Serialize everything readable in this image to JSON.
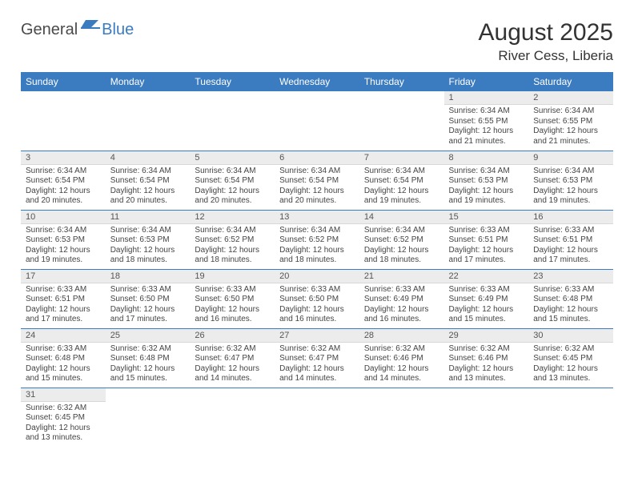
{
  "brand": {
    "part1": "General",
    "part2": "Blue"
  },
  "title": "August 2025",
  "location": "River Cess, Liberia",
  "colors": {
    "header_bg": "#3b7bbf",
    "header_fg": "#ffffff",
    "daynum_bg": "#ececec",
    "row_border": "#3b7bbf",
    "text": "#333333"
  },
  "typography": {
    "title_fontsize": 30,
    "location_fontsize": 17,
    "dayheader_fontsize": 12,
    "daynum_fontsize": 11,
    "body_fontsize": 10
  },
  "day_headers": [
    "Sunday",
    "Monday",
    "Tuesday",
    "Wednesday",
    "Thursday",
    "Friday",
    "Saturday"
  ],
  "weeks": [
    [
      {
        "n": "",
        "sunrise": "",
        "sunset": "",
        "daylight": ""
      },
      {
        "n": "",
        "sunrise": "",
        "sunset": "",
        "daylight": ""
      },
      {
        "n": "",
        "sunrise": "",
        "sunset": "",
        "daylight": ""
      },
      {
        "n": "",
        "sunrise": "",
        "sunset": "",
        "daylight": ""
      },
      {
        "n": "",
        "sunrise": "",
        "sunset": "",
        "daylight": ""
      },
      {
        "n": "1",
        "sunrise": "Sunrise: 6:34 AM",
        "sunset": "Sunset: 6:55 PM",
        "daylight": "Daylight: 12 hours and 21 minutes."
      },
      {
        "n": "2",
        "sunrise": "Sunrise: 6:34 AM",
        "sunset": "Sunset: 6:55 PM",
        "daylight": "Daylight: 12 hours and 21 minutes."
      }
    ],
    [
      {
        "n": "3",
        "sunrise": "Sunrise: 6:34 AM",
        "sunset": "Sunset: 6:54 PM",
        "daylight": "Daylight: 12 hours and 20 minutes."
      },
      {
        "n": "4",
        "sunrise": "Sunrise: 6:34 AM",
        "sunset": "Sunset: 6:54 PM",
        "daylight": "Daylight: 12 hours and 20 minutes."
      },
      {
        "n": "5",
        "sunrise": "Sunrise: 6:34 AM",
        "sunset": "Sunset: 6:54 PM",
        "daylight": "Daylight: 12 hours and 20 minutes."
      },
      {
        "n": "6",
        "sunrise": "Sunrise: 6:34 AM",
        "sunset": "Sunset: 6:54 PM",
        "daylight": "Daylight: 12 hours and 20 minutes."
      },
      {
        "n": "7",
        "sunrise": "Sunrise: 6:34 AM",
        "sunset": "Sunset: 6:54 PM",
        "daylight": "Daylight: 12 hours and 19 minutes."
      },
      {
        "n": "8",
        "sunrise": "Sunrise: 6:34 AM",
        "sunset": "Sunset: 6:53 PM",
        "daylight": "Daylight: 12 hours and 19 minutes."
      },
      {
        "n": "9",
        "sunrise": "Sunrise: 6:34 AM",
        "sunset": "Sunset: 6:53 PM",
        "daylight": "Daylight: 12 hours and 19 minutes."
      }
    ],
    [
      {
        "n": "10",
        "sunrise": "Sunrise: 6:34 AM",
        "sunset": "Sunset: 6:53 PM",
        "daylight": "Daylight: 12 hours and 19 minutes."
      },
      {
        "n": "11",
        "sunrise": "Sunrise: 6:34 AM",
        "sunset": "Sunset: 6:53 PM",
        "daylight": "Daylight: 12 hours and 18 minutes."
      },
      {
        "n": "12",
        "sunrise": "Sunrise: 6:34 AM",
        "sunset": "Sunset: 6:52 PM",
        "daylight": "Daylight: 12 hours and 18 minutes."
      },
      {
        "n": "13",
        "sunrise": "Sunrise: 6:34 AM",
        "sunset": "Sunset: 6:52 PM",
        "daylight": "Daylight: 12 hours and 18 minutes."
      },
      {
        "n": "14",
        "sunrise": "Sunrise: 6:34 AM",
        "sunset": "Sunset: 6:52 PM",
        "daylight": "Daylight: 12 hours and 18 minutes."
      },
      {
        "n": "15",
        "sunrise": "Sunrise: 6:33 AM",
        "sunset": "Sunset: 6:51 PM",
        "daylight": "Daylight: 12 hours and 17 minutes."
      },
      {
        "n": "16",
        "sunrise": "Sunrise: 6:33 AM",
        "sunset": "Sunset: 6:51 PM",
        "daylight": "Daylight: 12 hours and 17 minutes."
      }
    ],
    [
      {
        "n": "17",
        "sunrise": "Sunrise: 6:33 AM",
        "sunset": "Sunset: 6:51 PM",
        "daylight": "Daylight: 12 hours and 17 minutes."
      },
      {
        "n": "18",
        "sunrise": "Sunrise: 6:33 AM",
        "sunset": "Sunset: 6:50 PM",
        "daylight": "Daylight: 12 hours and 17 minutes."
      },
      {
        "n": "19",
        "sunrise": "Sunrise: 6:33 AM",
        "sunset": "Sunset: 6:50 PM",
        "daylight": "Daylight: 12 hours and 16 minutes."
      },
      {
        "n": "20",
        "sunrise": "Sunrise: 6:33 AM",
        "sunset": "Sunset: 6:50 PM",
        "daylight": "Daylight: 12 hours and 16 minutes."
      },
      {
        "n": "21",
        "sunrise": "Sunrise: 6:33 AM",
        "sunset": "Sunset: 6:49 PM",
        "daylight": "Daylight: 12 hours and 16 minutes."
      },
      {
        "n": "22",
        "sunrise": "Sunrise: 6:33 AM",
        "sunset": "Sunset: 6:49 PM",
        "daylight": "Daylight: 12 hours and 15 minutes."
      },
      {
        "n": "23",
        "sunrise": "Sunrise: 6:33 AM",
        "sunset": "Sunset: 6:48 PM",
        "daylight": "Daylight: 12 hours and 15 minutes."
      }
    ],
    [
      {
        "n": "24",
        "sunrise": "Sunrise: 6:33 AM",
        "sunset": "Sunset: 6:48 PM",
        "daylight": "Daylight: 12 hours and 15 minutes."
      },
      {
        "n": "25",
        "sunrise": "Sunrise: 6:32 AM",
        "sunset": "Sunset: 6:48 PM",
        "daylight": "Daylight: 12 hours and 15 minutes."
      },
      {
        "n": "26",
        "sunrise": "Sunrise: 6:32 AM",
        "sunset": "Sunset: 6:47 PM",
        "daylight": "Daylight: 12 hours and 14 minutes."
      },
      {
        "n": "27",
        "sunrise": "Sunrise: 6:32 AM",
        "sunset": "Sunset: 6:47 PM",
        "daylight": "Daylight: 12 hours and 14 minutes."
      },
      {
        "n": "28",
        "sunrise": "Sunrise: 6:32 AM",
        "sunset": "Sunset: 6:46 PM",
        "daylight": "Daylight: 12 hours and 14 minutes."
      },
      {
        "n": "29",
        "sunrise": "Sunrise: 6:32 AM",
        "sunset": "Sunset: 6:46 PM",
        "daylight": "Daylight: 12 hours and 13 minutes."
      },
      {
        "n": "30",
        "sunrise": "Sunrise: 6:32 AM",
        "sunset": "Sunset: 6:45 PM",
        "daylight": "Daylight: 12 hours and 13 minutes."
      }
    ],
    [
      {
        "n": "31",
        "sunrise": "Sunrise: 6:32 AM",
        "sunset": "Sunset: 6:45 PM",
        "daylight": "Daylight: 12 hours and 13 minutes."
      },
      {
        "n": "",
        "sunrise": "",
        "sunset": "",
        "daylight": ""
      },
      {
        "n": "",
        "sunrise": "",
        "sunset": "",
        "daylight": ""
      },
      {
        "n": "",
        "sunrise": "",
        "sunset": "",
        "daylight": ""
      },
      {
        "n": "",
        "sunrise": "",
        "sunset": "",
        "daylight": ""
      },
      {
        "n": "",
        "sunrise": "",
        "sunset": "",
        "daylight": ""
      },
      {
        "n": "",
        "sunrise": "",
        "sunset": "",
        "daylight": ""
      }
    ]
  ]
}
